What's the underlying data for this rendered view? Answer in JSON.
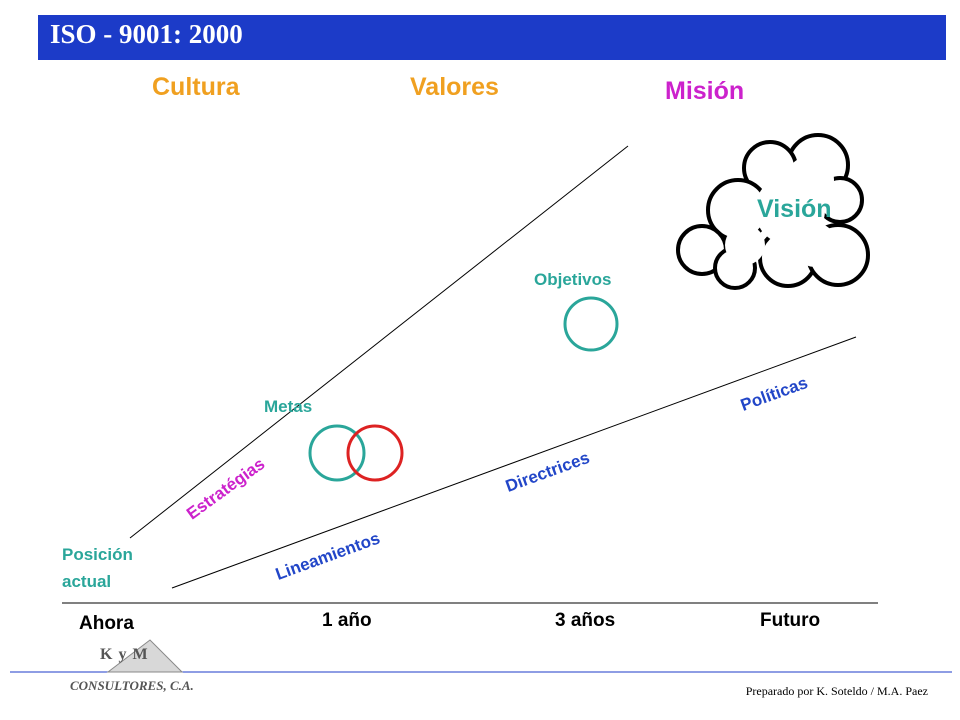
{
  "header": {
    "title": "ISO - 9001: 2000"
  },
  "colors": {
    "title_bar": "#1c3bc8",
    "orange": "#f0a020",
    "magenta": "#cc22cc",
    "teal": "#2aa69a",
    "blue": "#2246c8",
    "red": "#dd2222"
  },
  "concepts": {
    "cultura": "Cultura",
    "valores": "Valores",
    "mision": "Misión",
    "vision": "Visión",
    "objetivos": "Objetivos",
    "metas": "Metas",
    "estrategias": "Estratégias",
    "politicas": "Políticas",
    "directrices": "Directrices",
    "lineamientos": "Lineamientos",
    "posicion_1": "Posición",
    "posicion_2": "actual"
  },
  "timeline": [
    "Ahora",
    "1 año",
    "3 años",
    "Futuro"
  ],
  "logo": {
    "mark": "K y M",
    "name": "CONSULTORES, C.A."
  },
  "footer": {
    "credit": "Preparado por K. Soteldo / M.A. Paez"
  }
}
